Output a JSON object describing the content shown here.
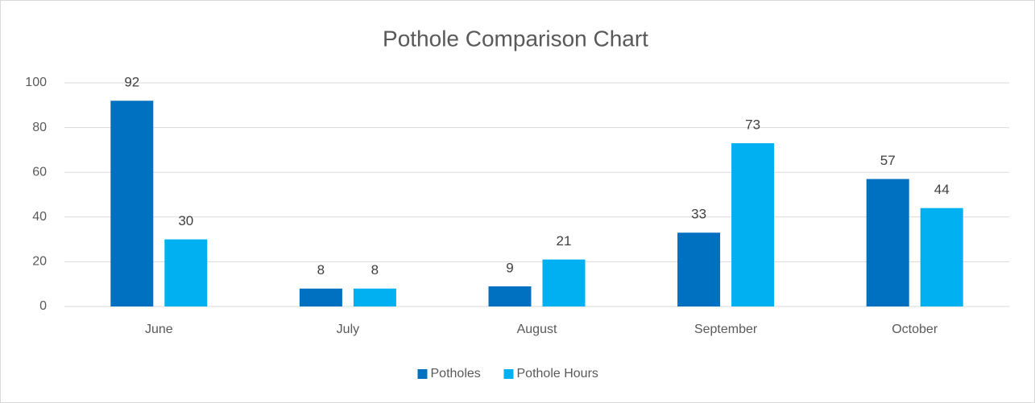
{
  "chart_data": {
    "type": "bar",
    "title": "Pothole Comparison Chart",
    "categories": [
      "June",
      "July",
      "August",
      "September",
      "October"
    ],
    "series": [
      {
        "name": "Potholes",
        "color": "#0070c0",
        "values": [
          92,
          8,
          9,
          33,
          57
        ]
      },
      {
        "name": "Pothole Hours",
        "color": "#00b0f0",
        "values": [
          30,
          8,
          21,
          73,
          44
        ]
      }
    ],
    "ylim": [
      0,
      100
    ],
    "yticks": [
      0,
      20,
      40,
      60,
      80,
      100
    ],
    "grid": true,
    "legend": "bottom"
  }
}
